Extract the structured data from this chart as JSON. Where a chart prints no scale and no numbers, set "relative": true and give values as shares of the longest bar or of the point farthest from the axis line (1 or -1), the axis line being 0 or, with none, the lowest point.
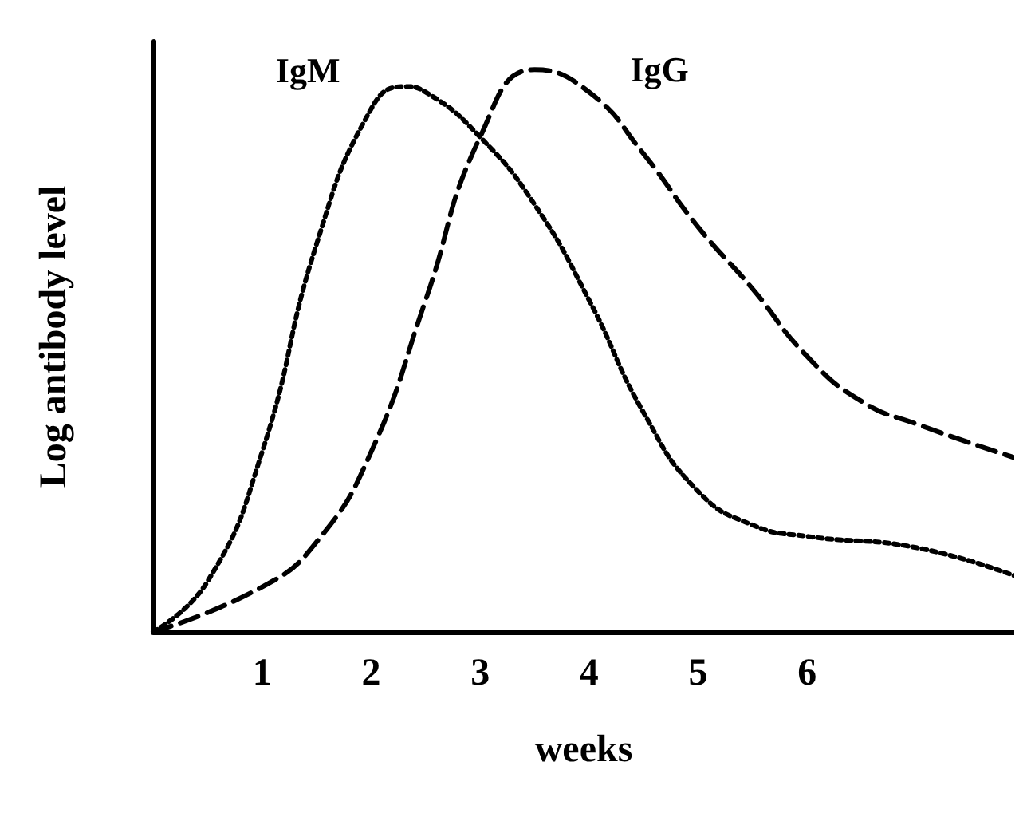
{
  "chart_data": {
    "type": "line",
    "relative": true,
    "xlabel": "weeks",
    "ylabel": "Log antibody level",
    "xlim": [
      0,
      7.9
    ],
    "xticks": [
      1,
      2,
      3,
      4,
      5,
      6
    ],
    "grid": false,
    "legend": false,
    "marker": "none",
    "tick_labels": "x",
    "series": [
      {
        "name": "IgM",
        "color": "#000000",
        "line_style": "dotted",
        "x": [
          0,
          0.5,
          1,
          1.5,
          2,
          2.3,
          2.5,
          3,
          3.5,
          4,
          4.5,
          5,
          5.5,
          6,
          7,
          7.9
        ],
        "values": [
          0,
          0.09,
          0.32,
          0.69,
          0.93,
          0.97,
          0.96,
          0.88,
          0.76,
          0.59,
          0.39,
          0.25,
          0.19,
          0.17,
          0.15,
          0.1
        ]
      },
      {
        "name": "IgG",
        "color": "#000000",
        "line_style": "dashed",
        "x": [
          0,
          1,
          1.5,
          2,
          2.5,
          3,
          3.5,
          4,
          4.5,
          5,
          5.5,
          6,
          6.5,
          7,
          7.9
        ],
        "values": [
          0,
          0.08,
          0.16,
          0.32,
          0.59,
          0.88,
          1,
          0.96,
          0.85,
          0.72,
          0.61,
          0.49,
          0.41,
          0.37,
          0.31
        ]
      }
    ]
  }
}
